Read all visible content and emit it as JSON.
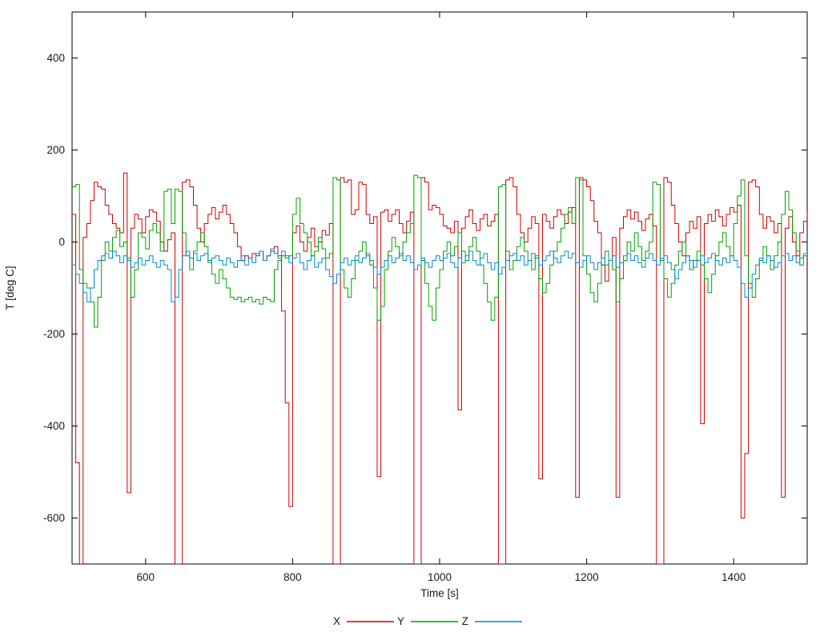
{
  "chart_data": {
    "type": "line",
    "title": "",
    "xlabel": "Time [s]",
    "ylabel": "T [deg C]",
    "xlim": [
      500,
      1500
    ],
    "ylim": [
      -700,
      500
    ],
    "xticks": [
      600,
      800,
      1000,
      1200,
      1400
    ],
    "yticks": [
      -600,
      -400,
      -200,
      0,
      200,
      400
    ],
    "grid": false,
    "legend_position": "bottom-center",
    "line_style": "steps",
    "x_start": 500,
    "x_step": 5,
    "series": [
      {
        "name": "X",
        "color": "#cc0000",
        "values": [
          60,
          -480,
          -700,
          10,
          40,
          90,
          130,
          120,
          115,
          80,
          60,
          40,
          30,
          20,
          150,
          -545,
          30,
          60,
          50,
          20,
          55,
          70,
          65,
          45,
          0,
          -20,
          5,
          20,
          -700,
          -700,
          130,
          135,
          120,
          80,
          30,
          0,
          40,
          60,
          75,
          50,
          65,
          80,
          60,
          40,
          20,
          -10,
          -40,
          -30,
          -35,
          -25,
          -30,
          -20,
          -40,
          -30,
          -20,
          -10,
          -30,
          -150,
          -350,
          -575,
          20,
          35,
          0,
          -20,
          10,
          30,
          -10,
          0,
          25,
          15,
          40,
          -700,
          -700,
          140,
          130,
          135,
          60,
          70,
          130,
          125,
          60,
          40,
          55,
          -510,
          65,
          70,
          45,
          60,
          70,
          40,
          20,
          45,
          65,
          -700,
          -700,
          140,
          130,
          70,
          80,
          75,
          60,
          35,
          30,
          20,
          45,
          -365,
          30,
          55,
          70,
          40,
          25,
          50,
          60,
          35,
          45,
          60,
          -700,
          -700,
          135,
          140,
          120,
          60,
          20,
          0,
          30,
          55,
          40,
          -515,
          60,
          45,
          30,
          55,
          70,
          60,
          40,
          65,
          75,
          -555,
          140,
          135,
          120,
          90,
          45,
          20,
          -50,
          -85,
          -40,
          10,
          -555,
          30,
          55,
          70,
          50,
          65,
          45,
          25,
          50,
          60,
          35,
          -700,
          -700,
          140,
          130,
          80,
          40,
          0,
          -30,
          20,
          45,
          30,
          55,
          -395,
          40,
          60,
          45,
          70,
          55,
          35,
          60,
          75,
          65,
          80,
          -600,
          -460,
          130,
          135,
          120,
          60,
          30,
          55,
          45,
          20,
          40,
          -555,
          30,
          55,
          0,
          -30,
          20,
          45,
          65
        ]
      },
      {
        "name": "Y",
        "color": "#00a000",
        "values": [
          120,
          125,
          -60,
          -90,
          -100,
          -130,
          -185,
          -120,
          -40,
          0,
          -20,
          10,
          25,
          -10,
          0,
          -35,
          -120,
          -60,
          20,
          10,
          -15,
          25,
          40,
          20,
          -20,
          110,
          115,
          40,
          115,
          110,
          20,
          -30,
          -60,
          -20,
          0,
          20,
          -10,
          -40,
          -70,
          -90,
          -60,
          -80,
          -100,
          -120,
          -125,
          -120,
          -130,
          -125,
          -120,
          -130,
          -125,
          -135,
          -120,
          -125,
          -130,
          -60,
          -40,
          -30,
          -35,
          -30,
          60,
          95,
          40,
          20,
          0,
          -30,
          -20,
          10,
          -15,
          -35,
          -25,
          140,
          135,
          -60,
          -100,
          -120,
          -80,
          -40,
          -20,
          0,
          -30,
          -50,
          -100,
          -170,
          -140,
          -60,
          -20,
          10,
          -10,
          -30,
          0,
          20,
          40,
          145,
          140,
          -40,
          -90,
          -140,
          -170,
          -100,
          -60,
          -20,
          0,
          -30,
          -10,
          20,
          -20,
          -40,
          -10,
          10,
          -20,
          -50,
          -90,
          -130,
          -170,
          -120,
          120,
          125,
          -20,
          -60,
          -40,
          -10,
          10,
          -20,
          -40,
          -60,
          -30,
          -80,
          -110,
          -90,
          -50,
          -20,
          0,
          30,
          60,
          75,
          40,
          140,
          135,
          -30,
          -70,
          -110,
          -130,
          -90,
          -50,
          -20,
          -40,
          -60,
          -130,
          -80,
          -40,
          0,
          -20,
          20,
          -10,
          -40,
          -20,
          0,
          130,
          125,
          -40,
          -80,
          -120,
          -90,
          -50,
          -20,
          0,
          -30,
          -60,
          -40,
          -20,
          -50,
          -80,
          -110,
          -70,
          -30,
          0,
          20,
          -10,
          -30,
          40,
          100,
          135,
          -30,
          -90,
          -120,
          -80,
          -40,
          -10,
          -30,
          -60,
          -30,
          0,
          60,
          110,
          70,
          20,
          -20,
          -50,
          -30,
          -20
        ]
      },
      {
        "name": "Z",
        "color": "#0088cc",
        "values": [
          -50,
          -70,
          -90,
          -110,
          -130,
          -100,
          -60,
          -40,
          -30,
          -25,
          -35,
          -20,
          -30,
          -45,
          -30,
          -40,
          -55,
          -45,
          -35,
          -50,
          -40,
          -30,
          -45,
          -55,
          -40,
          -50,
          -60,
          -130,
          -120,
          -60,
          -30,
          -20,
          -35,
          -25,
          -40,
          -30,
          -25,
          -45,
          -35,
          -30,
          -40,
          -50,
          -35,
          -45,
          -55,
          -40,
          -30,
          -50,
          -35,
          -45,
          -25,
          -20,
          -40,
          -30,
          -15,
          -25,
          -35,
          -20,
          -30,
          -45,
          -35,
          -25,
          -45,
          -60,
          -40,
          -30,
          -55,
          -45,
          -35,
          -60,
          -75,
          -90,
          -70,
          -45,
          -35,
          -50,
          -40,
          -30,
          -45,
          -35,
          -25,
          -40,
          -55,
          -70,
          -55,
          -40,
          -30,
          -45,
          -35,
          -25,
          -40,
          -30,
          -45,
          -60,
          -50,
          -35,
          -45,
          -55,
          -40,
          -30,
          -40,
          -35,
          -25,
          -45,
          -55,
          -35,
          -45,
          -30,
          -20,
          -40,
          -50,
          -35,
          -25,
          -45,
          -60,
          -45,
          -70,
          -55,
          -40,
          -30,
          -25,
          -40,
          -30,
          -50,
          -40,
          -25,
          -35,
          -50,
          -40,
          -30,
          -20,
          -35,
          -45,
          -30,
          -20,
          -35,
          -25,
          -45,
          -55,
          -40,
          -30,
          -45,
          -60,
          -45,
          -35,
          -50,
          -40,
          -30,
          -55,
          -45,
          -30,
          -25,
          -40,
          -30,
          -45,
          -55,
          -35,
          -25,
          -40,
          -50,
          -35,
          -30,
          -45,
          -60,
          -80,
          -60,
          -45,
          -30,
          -40,
          -55,
          -40,
          -30,
          -45,
          -35,
          -25,
          -40,
          -50,
          -35,
          -45,
          -30,
          -40,
          -55,
          -90,
          -120,
          -100,
          -70,
          -50,
          -35,
          -45,
          -30,
          -40,
          -55,
          -45,
          -30,
          -25,
          -40,
          -30,
          -45,
          -35,
          -25,
          -30
        ]
      }
    ]
  }
}
